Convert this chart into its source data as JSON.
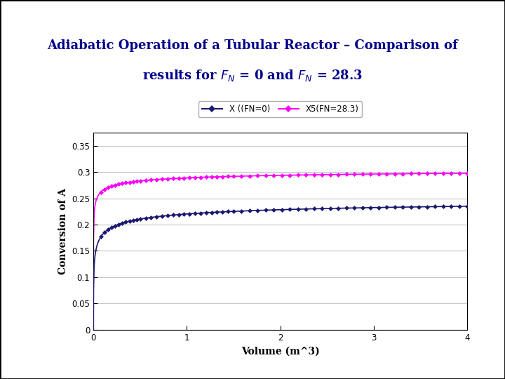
{
  "title_line1": "Adiabatic Operation of a Tubular Reactor – Comparison of",
  "title_line2": "results for $F_N$ = 0 and $F_N$ = 28.3",
  "title_color": "#00008B",
  "title_fontsize": 13,
  "xlabel": "Volume (m^3)",
  "ylabel": "Conversion of A",
  "xlim": [
    0,
    4
  ],
  "ylim": [
    0,
    0.375
  ],
  "yticks": [
    0,
    0.05,
    0.1,
    0.15,
    0.2,
    0.25,
    0.3,
    0.35
  ],
  "xticks": [
    0,
    1,
    2,
    3,
    4
  ],
  "series1_label": "X ((FN=0)",
  "series1_color": "#191970",
  "series2_label": "X5(FN=28.3)",
  "series2_color": "#FF00FF",
  "marker": "D",
  "marker_size": 3.5,
  "bg_color": "#FFFFFF",
  "plot_bg_color": "#FFFFFF",
  "grid_color": "#C8C8C8",
  "border_color": "#000000",
  "fig_bg": "#FFFFFF"
}
